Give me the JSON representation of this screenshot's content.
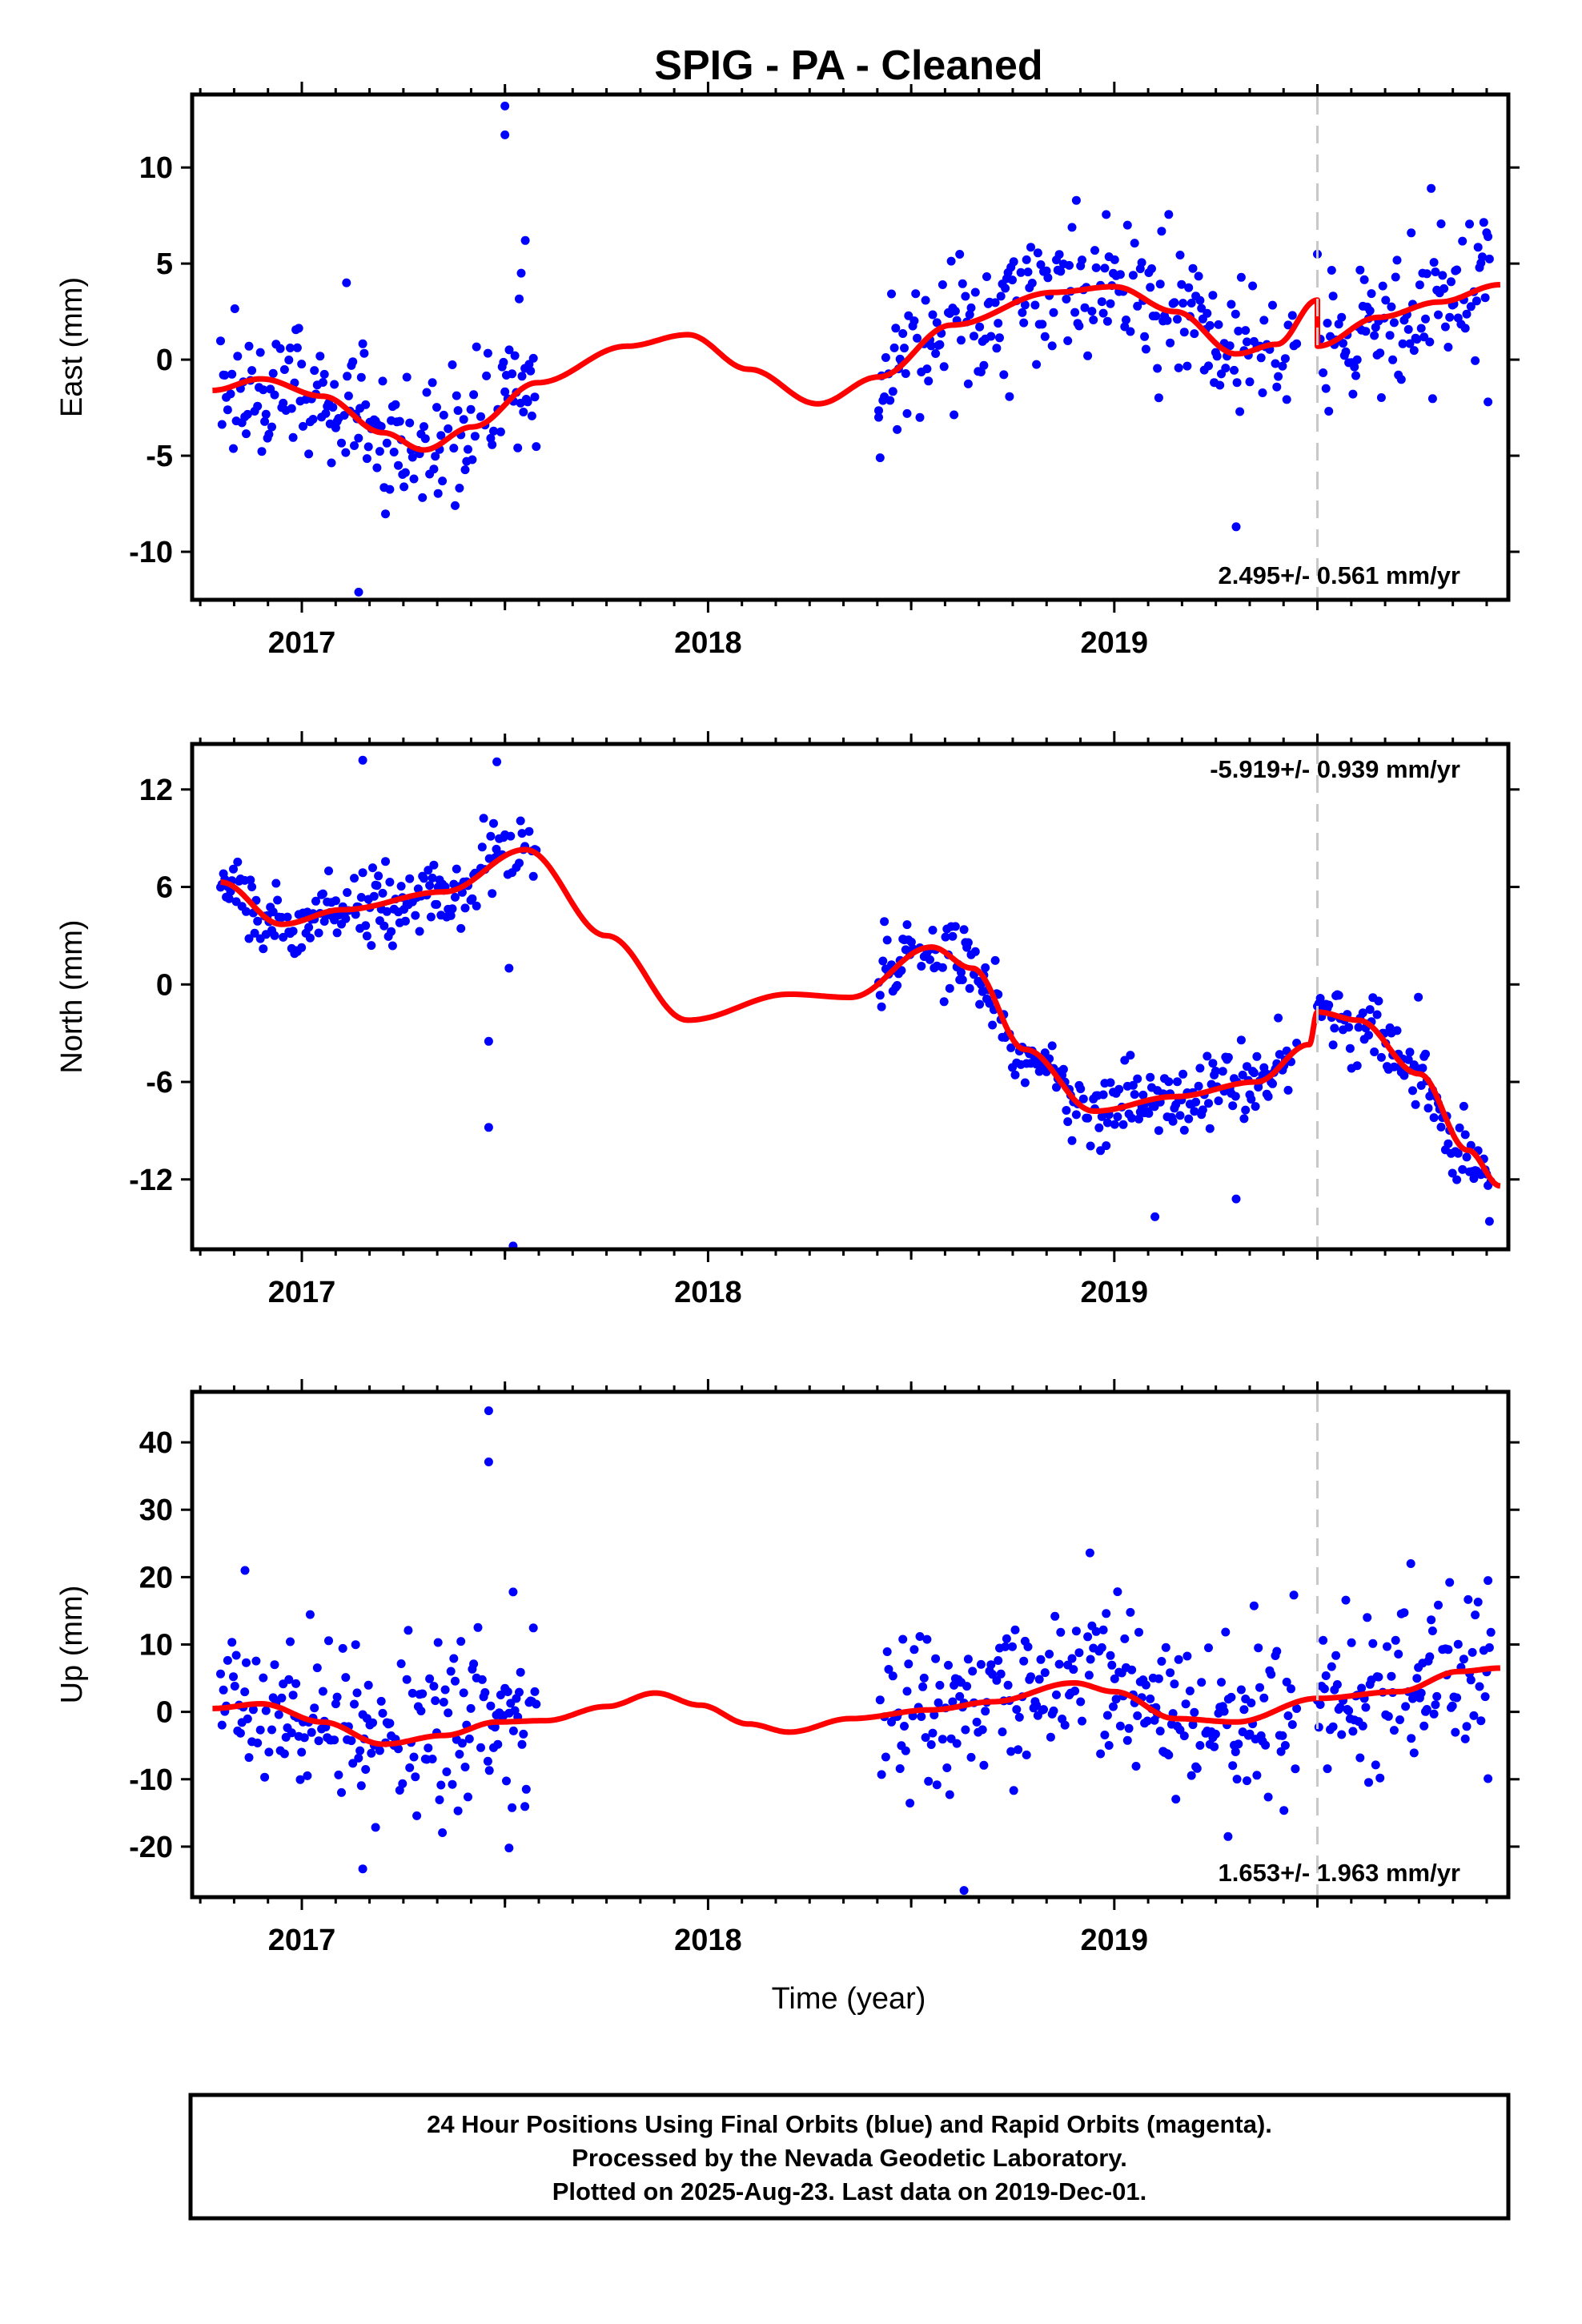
{
  "title": "SPIG  - PA - Cleaned",
  "x_axis_label": "Time (year)",
  "footer_lines": [
    "24 Hour Positions Using Final Orbits (blue) and Rapid Orbits (magenta).",
    "Processed by the Nevada Geodetic Laboratory.",
    "Plotted on 2025-Aug-23. Last data on 2019-Dec-01."
  ],
  "colors": {
    "points": "#0000ff",
    "model": "#ff0000",
    "event_line": "#c8c8c8",
    "frame": "#000000"
  },
  "chart_data": [
    {
      "type": "scatter",
      "panel": "east",
      "ylabel": "East (mm)",
      "rate_label": "2.495+/- 0.561 mm/yr",
      "xlim": [
        2016.73,
        2019.97
      ],
      "ylim": [
        -12.5,
        13.8
      ],
      "x_ticks": [
        2017,
        2018,
        2019
      ],
      "y_ticks": [
        -10,
        -5,
        0,
        5,
        10
      ],
      "grid": false,
      "event_line_x": 2019.5,
      "data_segments": [
        [
          2016.8,
          2017.58
        ],
        [
          2018.42,
          2019.45
        ],
        [
          2019.5,
          2019.93
        ]
      ],
      "model_knots": [
        [
          2016.78,
          -1.6
        ],
        [
          2016.9,
          -1.0
        ],
        [
          2017.05,
          -1.9
        ],
        [
          2017.2,
          -3.8
        ],
        [
          2017.3,
          -4.7
        ],
        [
          2017.42,
          -3.5
        ],
        [
          2017.58,
          -1.2
        ],
        [
          2017.8,
          0.7
        ],
        [
          2017.95,
          1.3
        ],
        [
          2018.1,
          -0.5
        ],
        [
          2018.27,
          -2.3
        ],
        [
          2018.42,
          -0.9
        ],
        [
          2018.6,
          1.8
        ],
        [
          2018.85,
          3.5
        ],
        [
          2019.0,
          3.8
        ],
        [
          2019.15,
          2.5
        ],
        [
          2019.3,
          0.3
        ],
        [
          2019.4,
          0.8
        ],
        [
          2019.5,
          3.1
        ],
        [
          2019.5,
          0.7
        ],
        [
          2019.65,
          2.2
        ],
        [
          2019.8,
          3.0
        ],
        [
          2019.95,
          3.9
        ]
      ],
      "scatter_sd": 1.8,
      "outliers": [
        [
          2017.5,
          13.2
        ],
        [
          2017.5,
          11.7
        ],
        [
          2017.55,
          6.2
        ],
        [
          2017.54,
          4.5
        ],
        [
          2017.14,
          -12.1
        ],
        [
          2019.3,
          -8.7
        ],
        [
          2019.92,
          -2.2
        ],
        [
          2018.42,
          -3.0
        ],
        [
          2017.11,
          4.0
        ]
      ]
    },
    {
      "type": "scatter",
      "panel": "north",
      "ylabel": "North (mm)",
      "rate_label": "-5.919+/- 0.939 mm/yr",
      "xlim": [
        2016.73,
        2019.97
      ],
      "ylim": [
        -16.3,
        14.8
      ],
      "x_ticks": [
        2017,
        2018,
        2019
      ],
      "y_ticks": [
        -12,
        -6,
        0,
        6,
        12
      ],
      "grid": false,
      "event_line_x": 2019.5,
      "data_segments": [
        [
          2016.8,
          2017.58
        ],
        [
          2018.42,
          2019.45
        ],
        [
          2019.5,
          2019.93
        ]
      ],
      "model_knots": [
        [
          2016.8,
          6.3
        ],
        [
          2016.95,
          3.7
        ],
        [
          2017.1,
          4.6
        ],
        [
          2017.35,
          5.7
        ],
        [
          2017.55,
          8.3
        ],
        [
          2017.75,
          3.0
        ],
        [
          2017.95,
          -2.2
        ],
        [
          2018.2,
          -0.6
        ],
        [
          2018.35,
          -0.8
        ],
        [
          2018.55,
          2.3
        ],
        [
          2018.65,
          1.0
        ],
        [
          2018.78,
          -4.0
        ],
        [
          2018.95,
          -7.8
        ],
        [
          2019.15,
          -6.9
        ],
        [
          2019.35,
          -6.0
        ],
        [
          2019.48,
          -3.7
        ],
        [
          2019.5,
          -1.7
        ],
        [
          2019.6,
          -2.2
        ],
        [
          2019.75,
          -5.5
        ],
        [
          2019.87,
          -10.2
        ],
        [
          2019.95,
          -12.4
        ]
      ],
      "scatter_sd": 1.1,
      "outliers": [
        [
          2017.15,
          13.8
        ],
        [
          2017.48,
          13.7
        ],
        [
          2017.46,
          -3.5
        ],
        [
          2017.46,
          -8.8
        ],
        [
          2017.51,
          1.0
        ],
        [
          2017.52,
          -16.1
        ],
        [
          2019.1,
          -14.3
        ],
        [
          2019.3,
          -13.2
        ]
      ]
    },
    {
      "type": "scatter",
      "panel": "up",
      "ylabel": "Up (mm)",
      "rate_label": "1.653+/- 1.963 mm/yr",
      "xlim": [
        2016.73,
        2019.97
      ],
      "ylim": [
        -27.5,
        47.5
      ],
      "x_ticks": [
        2017,
        2018,
        2019
      ],
      "y_ticks": [
        -20,
        -10,
        0,
        10,
        20,
        30,
        40
      ],
      "grid": false,
      "event_line_x": 2019.5,
      "data_segments": [
        [
          2016.8,
          2017.58
        ],
        [
          2018.42,
          2019.45
        ],
        [
          2019.5,
          2019.93
        ]
      ],
      "model_knots": [
        [
          2016.78,
          0.5
        ],
        [
          2016.9,
          1.2
        ],
        [
          2017.05,
          -1.5
        ],
        [
          2017.2,
          -4.8
        ],
        [
          2017.35,
          -3.5
        ],
        [
          2017.48,
          -1.5
        ],
        [
          2017.6,
          -1.3
        ],
        [
          2017.75,
          0.8
        ],
        [
          2017.87,
          2.8
        ],
        [
          2017.98,
          1.0
        ],
        [
          2018.1,
          -1.8
        ],
        [
          2018.2,
          -3.0
        ],
        [
          2018.35,
          -1.0
        ],
        [
          2018.55,
          0.3
        ],
        [
          2018.7,
          1.5
        ],
        [
          2018.9,
          4.3
        ],
        [
          2019.0,
          3.0
        ],
        [
          2019.15,
          -1.0
        ],
        [
          2019.3,
          -1.5
        ],
        [
          2019.5,
          2.0
        ],
        [
          2019.7,
          3.0
        ],
        [
          2019.85,
          6.0
        ],
        [
          2019.95,
          6.5
        ]
      ],
      "scatter_sd": 6.0,
      "outliers": [
        [
          2017.46,
          44.7
        ],
        [
          2017.46,
          37.1
        ],
        [
          2017.52,
          17.8
        ],
        [
          2016.86,
          21.0
        ],
        [
          2018.63,
          -26.5
        ],
        [
          2019.28,
          -18.5
        ],
        [
          2018.94,
          23.6
        ],
        [
          2019.73,
          22.0
        ],
        [
          2017.15,
          -23.3
        ],
        [
          2017.51,
          -20.2
        ],
        [
          2019.92,
          19.5
        ]
      ]
    }
  ]
}
